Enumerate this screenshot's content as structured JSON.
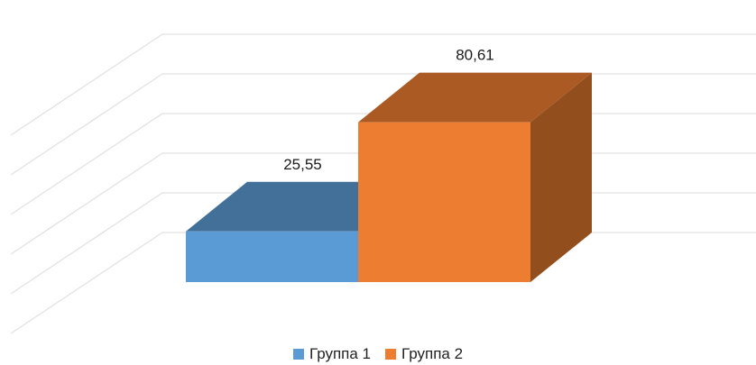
{
  "chart_data": {
    "type": "bar",
    "style": "3d",
    "categories": [
      ""
    ],
    "series": [
      {
        "name": "Группа 1",
        "values": [
          25.55
        ],
        "label": "25,55",
        "color": "#5b9bd5"
      },
      {
        "name": "Группа 2",
        "values": [
          80.61
        ],
        "label": "80,61",
        "color": "#ed7d31"
      }
    ],
    "ylim": [
      0,
      100
    ],
    "grid": true,
    "legend_position": "bottom"
  }
}
